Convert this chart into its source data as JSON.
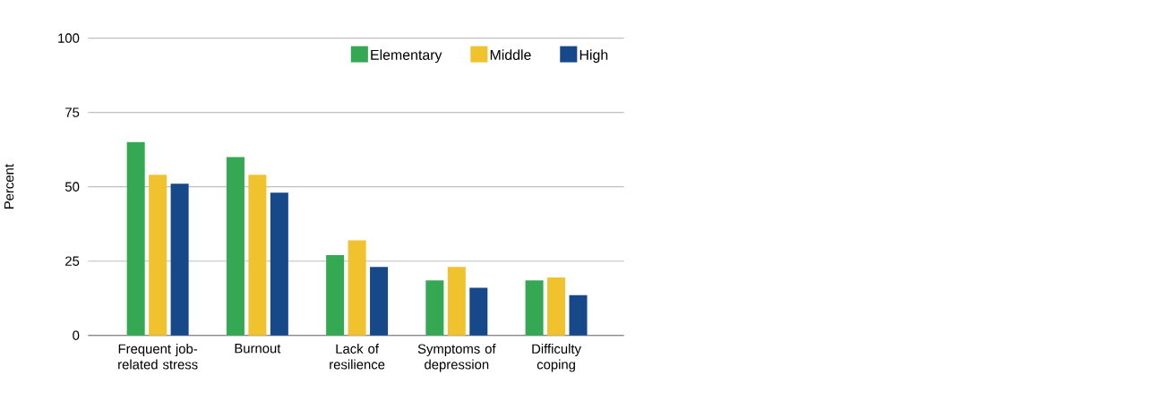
{
  "chart_data": {
    "type": "bar",
    "ylabel": "Percent",
    "categories": [
      "Frequent job-related stress",
      "Burnout",
      "Lack of resilience",
      "Symptoms of depression",
      "Difficulty coping"
    ],
    "series": [
      {
        "name": "Elementary",
        "color": "#34a853",
        "values": [
          65,
          60,
          27,
          18.5,
          18.5
        ]
      },
      {
        "name": "Middle",
        "color": "#f0c22e",
        "values": [
          54,
          54,
          32,
          23,
          19.5
        ]
      },
      {
        "name": "High",
        "color": "#17488a",
        "values": [
          51,
          48,
          23,
          16,
          13.5
        ]
      }
    ],
    "ylim": [
      0,
      100
    ],
    "yticks": [
      0,
      25,
      50,
      75,
      100
    ],
    "grid": "y",
    "legend": "top right"
  }
}
